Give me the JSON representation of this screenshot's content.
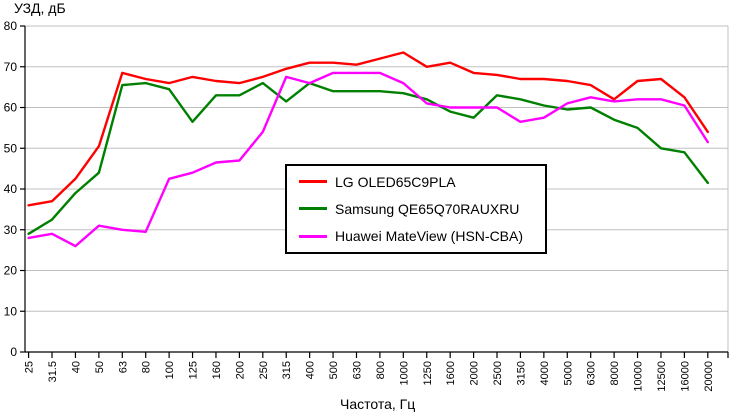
{
  "chart": {
    "title": "УЗД, дБ",
    "x_axis_title": "Частота, Гц"
  },
  "chart_data": {
    "type": "line",
    "title": "УЗД, дБ",
    "xlabel": "Частота, Гц",
    "ylabel": "УЗД, дБ",
    "ylim": [
      0,
      80
    ],
    "ytick_step": 10,
    "ytick_labels": [
      "0",
      "10",
      "20",
      "30",
      "40",
      "50",
      "60",
      "70",
      "80"
    ],
    "grid": true,
    "legend_position": "center-inside",
    "axis_color": "#000000",
    "grid_color": "#c0c0c0",
    "categories": [
      "25",
      "31.5",
      "40",
      "50",
      "63",
      "80",
      "100",
      "125",
      "160",
      "200",
      "250",
      "315",
      "400",
      "500",
      "630",
      "800",
      "1000",
      "1250",
      "1600",
      "2000",
      "2500",
      "3150",
      "4000",
      "5000",
      "6300",
      "8000",
      "10000",
      "12500",
      "16000",
      "20000"
    ],
    "series": [
      {
        "name": "LG OLED65C9PLA",
        "color": "#ff0000",
        "values": [
          36,
          37,
          42.5,
          50.5,
          68.5,
          67,
          66,
          67.5,
          66.5,
          66,
          67.5,
          69.5,
          71,
          71,
          70.5,
          72,
          73.5,
          70,
          71,
          68.5,
          68,
          67,
          67,
          66.5,
          65.5,
          62,
          66.5,
          67,
          62.5,
          54
        ]
      },
      {
        "name": "Samsung QE65Q70RAUXRU",
        "color": "#008000",
        "values": [
          29,
          32.5,
          39,
          44,
          65.5,
          66,
          64.5,
          56.5,
          63,
          63,
          66,
          61.5,
          66,
          64,
          64,
          64,
          63.5,
          62,
          59,
          57.5,
          63,
          62,
          60.5,
          59.5,
          60,
          57,
          55,
          50,
          49,
          41.5
        ]
      },
      {
        "name": "Huawei MateView (HSN-CBA)",
        "color": "#ff00ff",
        "values": [
          28,
          29,
          26,
          31,
          30,
          29.5,
          42.5,
          44,
          46.5,
          47,
          54,
          67.5,
          66,
          68.5,
          68.5,
          68.5,
          66,
          61,
          60,
          60,
          60,
          56.5,
          57.5,
          61,
          62.5,
          61.5,
          62,
          62,
          60.5,
          51.5
        ]
      }
    ]
  }
}
